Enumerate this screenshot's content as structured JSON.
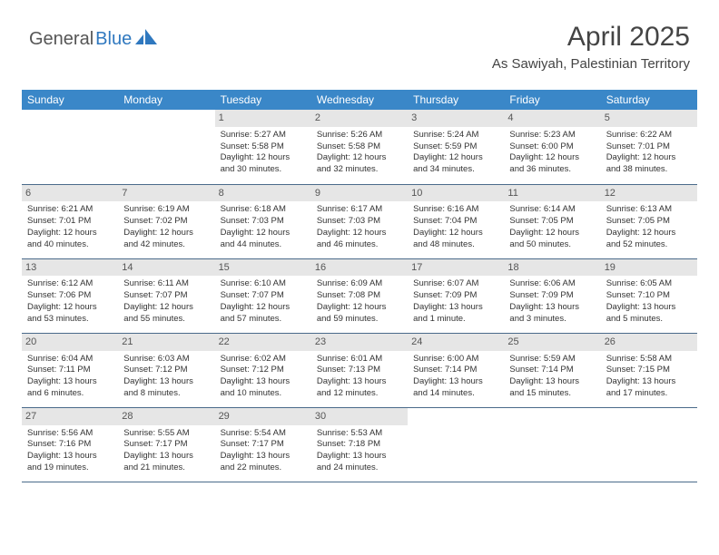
{
  "colors": {
    "header_bg": "#3a87c8",
    "header_text": "#ffffff",
    "daynum_bg": "#e6e6e6",
    "daynum_text": "#555555",
    "body_text": "#333333",
    "row_border": "#4a6a8a",
    "logo_gray": "#555555",
    "logo_blue": "#2f78bf",
    "page_bg": "#ffffff"
  },
  "typography": {
    "title_fontsize": 30,
    "subtitle_fontsize": 15,
    "header_fontsize": 12,
    "cell_fontsize": 9.5,
    "daynum_fontsize": 11
  },
  "logo": {
    "part1": "General",
    "part2": "Blue"
  },
  "title": "April 2025",
  "subtitle": "As Sawiyah, Palestinian Territory",
  "day_headers": [
    "Sunday",
    "Monday",
    "Tuesday",
    "Wednesday",
    "Thursday",
    "Friday",
    "Saturday"
  ],
  "weeks": [
    [
      {
        "n": "",
        "sr": "",
        "ss": "",
        "d1": "",
        "d2": ""
      },
      {
        "n": "",
        "sr": "",
        "ss": "",
        "d1": "",
        "d2": ""
      },
      {
        "n": "1",
        "sr": "Sunrise: 5:27 AM",
        "ss": "Sunset: 5:58 PM",
        "d1": "Daylight: 12 hours",
        "d2": "and 30 minutes."
      },
      {
        "n": "2",
        "sr": "Sunrise: 5:26 AM",
        "ss": "Sunset: 5:58 PM",
        "d1": "Daylight: 12 hours",
        "d2": "and 32 minutes."
      },
      {
        "n": "3",
        "sr": "Sunrise: 5:24 AM",
        "ss": "Sunset: 5:59 PM",
        "d1": "Daylight: 12 hours",
        "d2": "and 34 minutes."
      },
      {
        "n": "4",
        "sr": "Sunrise: 5:23 AM",
        "ss": "Sunset: 6:00 PM",
        "d1": "Daylight: 12 hours",
        "d2": "and 36 minutes."
      },
      {
        "n": "5",
        "sr": "Sunrise: 6:22 AM",
        "ss": "Sunset: 7:01 PM",
        "d1": "Daylight: 12 hours",
        "d2": "and 38 minutes."
      }
    ],
    [
      {
        "n": "6",
        "sr": "Sunrise: 6:21 AM",
        "ss": "Sunset: 7:01 PM",
        "d1": "Daylight: 12 hours",
        "d2": "and 40 minutes."
      },
      {
        "n": "7",
        "sr": "Sunrise: 6:19 AM",
        "ss": "Sunset: 7:02 PM",
        "d1": "Daylight: 12 hours",
        "d2": "and 42 minutes."
      },
      {
        "n": "8",
        "sr": "Sunrise: 6:18 AM",
        "ss": "Sunset: 7:03 PM",
        "d1": "Daylight: 12 hours",
        "d2": "and 44 minutes."
      },
      {
        "n": "9",
        "sr": "Sunrise: 6:17 AM",
        "ss": "Sunset: 7:03 PM",
        "d1": "Daylight: 12 hours",
        "d2": "and 46 minutes."
      },
      {
        "n": "10",
        "sr": "Sunrise: 6:16 AM",
        "ss": "Sunset: 7:04 PM",
        "d1": "Daylight: 12 hours",
        "d2": "and 48 minutes."
      },
      {
        "n": "11",
        "sr": "Sunrise: 6:14 AM",
        "ss": "Sunset: 7:05 PM",
        "d1": "Daylight: 12 hours",
        "d2": "and 50 minutes."
      },
      {
        "n": "12",
        "sr": "Sunrise: 6:13 AM",
        "ss": "Sunset: 7:05 PM",
        "d1": "Daylight: 12 hours",
        "d2": "and 52 minutes."
      }
    ],
    [
      {
        "n": "13",
        "sr": "Sunrise: 6:12 AM",
        "ss": "Sunset: 7:06 PM",
        "d1": "Daylight: 12 hours",
        "d2": "and 53 minutes."
      },
      {
        "n": "14",
        "sr": "Sunrise: 6:11 AM",
        "ss": "Sunset: 7:07 PM",
        "d1": "Daylight: 12 hours",
        "d2": "and 55 minutes."
      },
      {
        "n": "15",
        "sr": "Sunrise: 6:10 AM",
        "ss": "Sunset: 7:07 PM",
        "d1": "Daylight: 12 hours",
        "d2": "and 57 minutes."
      },
      {
        "n": "16",
        "sr": "Sunrise: 6:09 AM",
        "ss": "Sunset: 7:08 PM",
        "d1": "Daylight: 12 hours",
        "d2": "and 59 minutes."
      },
      {
        "n": "17",
        "sr": "Sunrise: 6:07 AM",
        "ss": "Sunset: 7:09 PM",
        "d1": "Daylight: 13 hours",
        "d2": "and 1 minute."
      },
      {
        "n": "18",
        "sr": "Sunrise: 6:06 AM",
        "ss": "Sunset: 7:09 PM",
        "d1": "Daylight: 13 hours",
        "d2": "and 3 minutes."
      },
      {
        "n": "19",
        "sr": "Sunrise: 6:05 AM",
        "ss": "Sunset: 7:10 PM",
        "d1": "Daylight: 13 hours",
        "d2": "and 5 minutes."
      }
    ],
    [
      {
        "n": "20",
        "sr": "Sunrise: 6:04 AM",
        "ss": "Sunset: 7:11 PM",
        "d1": "Daylight: 13 hours",
        "d2": "and 6 minutes."
      },
      {
        "n": "21",
        "sr": "Sunrise: 6:03 AM",
        "ss": "Sunset: 7:12 PM",
        "d1": "Daylight: 13 hours",
        "d2": "and 8 minutes."
      },
      {
        "n": "22",
        "sr": "Sunrise: 6:02 AM",
        "ss": "Sunset: 7:12 PM",
        "d1": "Daylight: 13 hours",
        "d2": "and 10 minutes."
      },
      {
        "n": "23",
        "sr": "Sunrise: 6:01 AM",
        "ss": "Sunset: 7:13 PM",
        "d1": "Daylight: 13 hours",
        "d2": "and 12 minutes."
      },
      {
        "n": "24",
        "sr": "Sunrise: 6:00 AM",
        "ss": "Sunset: 7:14 PM",
        "d1": "Daylight: 13 hours",
        "d2": "and 14 minutes."
      },
      {
        "n": "25",
        "sr": "Sunrise: 5:59 AM",
        "ss": "Sunset: 7:14 PM",
        "d1": "Daylight: 13 hours",
        "d2": "and 15 minutes."
      },
      {
        "n": "26",
        "sr": "Sunrise: 5:58 AM",
        "ss": "Sunset: 7:15 PM",
        "d1": "Daylight: 13 hours",
        "d2": "and 17 minutes."
      }
    ],
    [
      {
        "n": "27",
        "sr": "Sunrise: 5:56 AM",
        "ss": "Sunset: 7:16 PM",
        "d1": "Daylight: 13 hours",
        "d2": "and 19 minutes."
      },
      {
        "n": "28",
        "sr": "Sunrise: 5:55 AM",
        "ss": "Sunset: 7:17 PM",
        "d1": "Daylight: 13 hours",
        "d2": "and 21 minutes."
      },
      {
        "n": "29",
        "sr": "Sunrise: 5:54 AM",
        "ss": "Sunset: 7:17 PM",
        "d1": "Daylight: 13 hours",
        "d2": "and 22 minutes."
      },
      {
        "n": "30",
        "sr": "Sunrise: 5:53 AM",
        "ss": "Sunset: 7:18 PM",
        "d1": "Daylight: 13 hours",
        "d2": "and 24 minutes."
      },
      {
        "n": "",
        "sr": "",
        "ss": "",
        "d1": "",
        "d2": ""
      },
      {
        "n": "",
        "sr": "",
        "ss": "",
        "d1": "",
        "d2": ""
      },
      {
        "n": "",
        "sr": "",
        "ss": "",
        "d1": "",
        "d2": ""
      }
    ]
  ]
}
